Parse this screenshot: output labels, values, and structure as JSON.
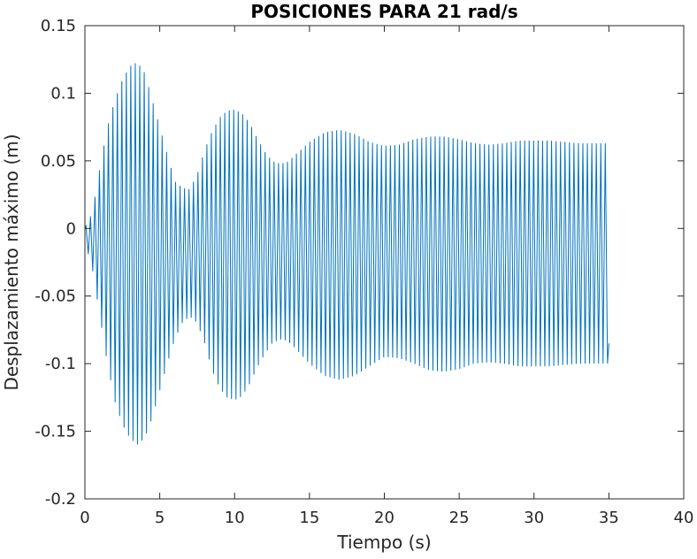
{
  "chart_data": {
    "type": "line",
    "title": "POSICIONES PARA 21 rad/s",
    "xlabel": "Tiempo (s)",
    "ylabel": "Desplazamiento máximo (m)",
    "xlim": [
      0,
      40
    ],
    "ylim": [
      -0.2,
      0.15
    ],
    "x_ticks": [
      0,
      5,
      10,
      15,
      20,
      25,
      30,
      35,
      40
    ],
    "x_tick_labels": [
      "0",
      "5",
      "10",
      "15",
      "20",
      "25",
      "30",
      "35",
      "40"
    ],
    "y_ticks": [
      -0.2,
      -0.15,
      -0.1,
      -0.05,
      0,
      0.05,
      0.1,
      0.15
    ],
    "y_tick_labels": [
      "-0.2",
      "-0.15",
      "-0.1",
      "-0.05",
      "0",
      "0.05",
      "0.1",
      "0.15"
    ],
    "grid": false,
    "line_color": "#0072BD",
    "series": [
      {
        "x_range": [
          0,
          35
        ],
        "oscillation_frequency_rad_s": 21,
        "oscillation_period_s": 0.299,
        "envelope_upper": {
          "t": [
            0,
            0.5,
            1,
            1.5,
            2,
            2.5,
            3,
            3.5,
            4,
            4.5,
            5,
            5.5,
            6,
            6.5,
            7,
            7.5,
            8,
            8.5,
            9,
            9.5,
            10,
            10.5,
            11,
            11.5,
            12,
            12.5,
            13,
            13.5,
            14,
            15,
            16,
            17,
            18,
            19,
            20,
            21,
            22,
            23,
            24,
            25,
            26,
            27,
            28,
            29,
            30,
            31,
            32,
            33,
            34,
            35
          ],
          "y": [
            0.0,
            0.012,
            0.045,
            0.075,
            0.095,
            0.11,
            0.12,
            0.123,
            0.115,
            0.095,
            0.075,
            0.055,
            0.035,
            0.03,
            0.029,
            0.04,
            0.058,
            0.072,
            0.082,
            0.087,
            0.088,
            0.085,
            0.078,
            0.067,
            0.057,
            0.05,
            0.048,
            0.049,
            0.054,
            0.064,
            0.071,
            0.073,
            0.07,
            0.064,
            0.061,
            0.062,
            0.066,
            0.068,
            0.068,
            0.066,
            0.063,
            0.062,
            0.063,
            0.065,
            0.065,
            0.065,
            0.064,
            0.063,
            0.063,
            0.063
          ]
        },
        "envelope_lower": {
          "t": [
            0,
            0.5,
            1,
            1.5,
            2,
            2.5,
            3,
            3.5,
            4,
            4.5,
            5,
            5.5,
            6,
            6.5,
            7,
            7.5,
            8,
            8.5,
            9,
            9.5,
            10,
            10.5,
            11,
            11.5,
            12,
            12.5,
            13,
            13.5,
            14,
            15,
            16,
            17,
            18,
            19,
            20,
            21,
            22,
            23,
            24,
            25,
            26,
            27,
            28,
            29,
            30,
            31,
            32,
            33,
            34,
            35
          ],
          "y": [
            -0.01,
            -0.03,
            -0.065,
            -0.1,
            -0.128,
            -0.145,
            -0.155,
            -0.16,
            -0.155,
            -0.14,
            -0.12,
            -0.1,
            -0.082,
            -0.07,
            -0.065,
            -0.07,
            -0.085,
            -0.105,
            -0.118,
            -0.125,
            -0.127,
            -0.124,
            -0.115,
            -0.103,
            -0.093,
            -0.085,
            -0.082,
            -0.083,
            -0.088,
            -0.1,
            -0.109,
            -0.112,
            -0.109,
            -0.102,
            -0.095,
            -0.096,
            -0.1,
            -0.105,
            -0.106,
            -0.104,
            -0.1,
            -0.099,
            -0.1,
            -0.102,
            -0.102,
            -0.102,
            -0.101,
            -0.1,
            -0.1,
            -0.1
          ]
        }
      }
    ]
  }
}
